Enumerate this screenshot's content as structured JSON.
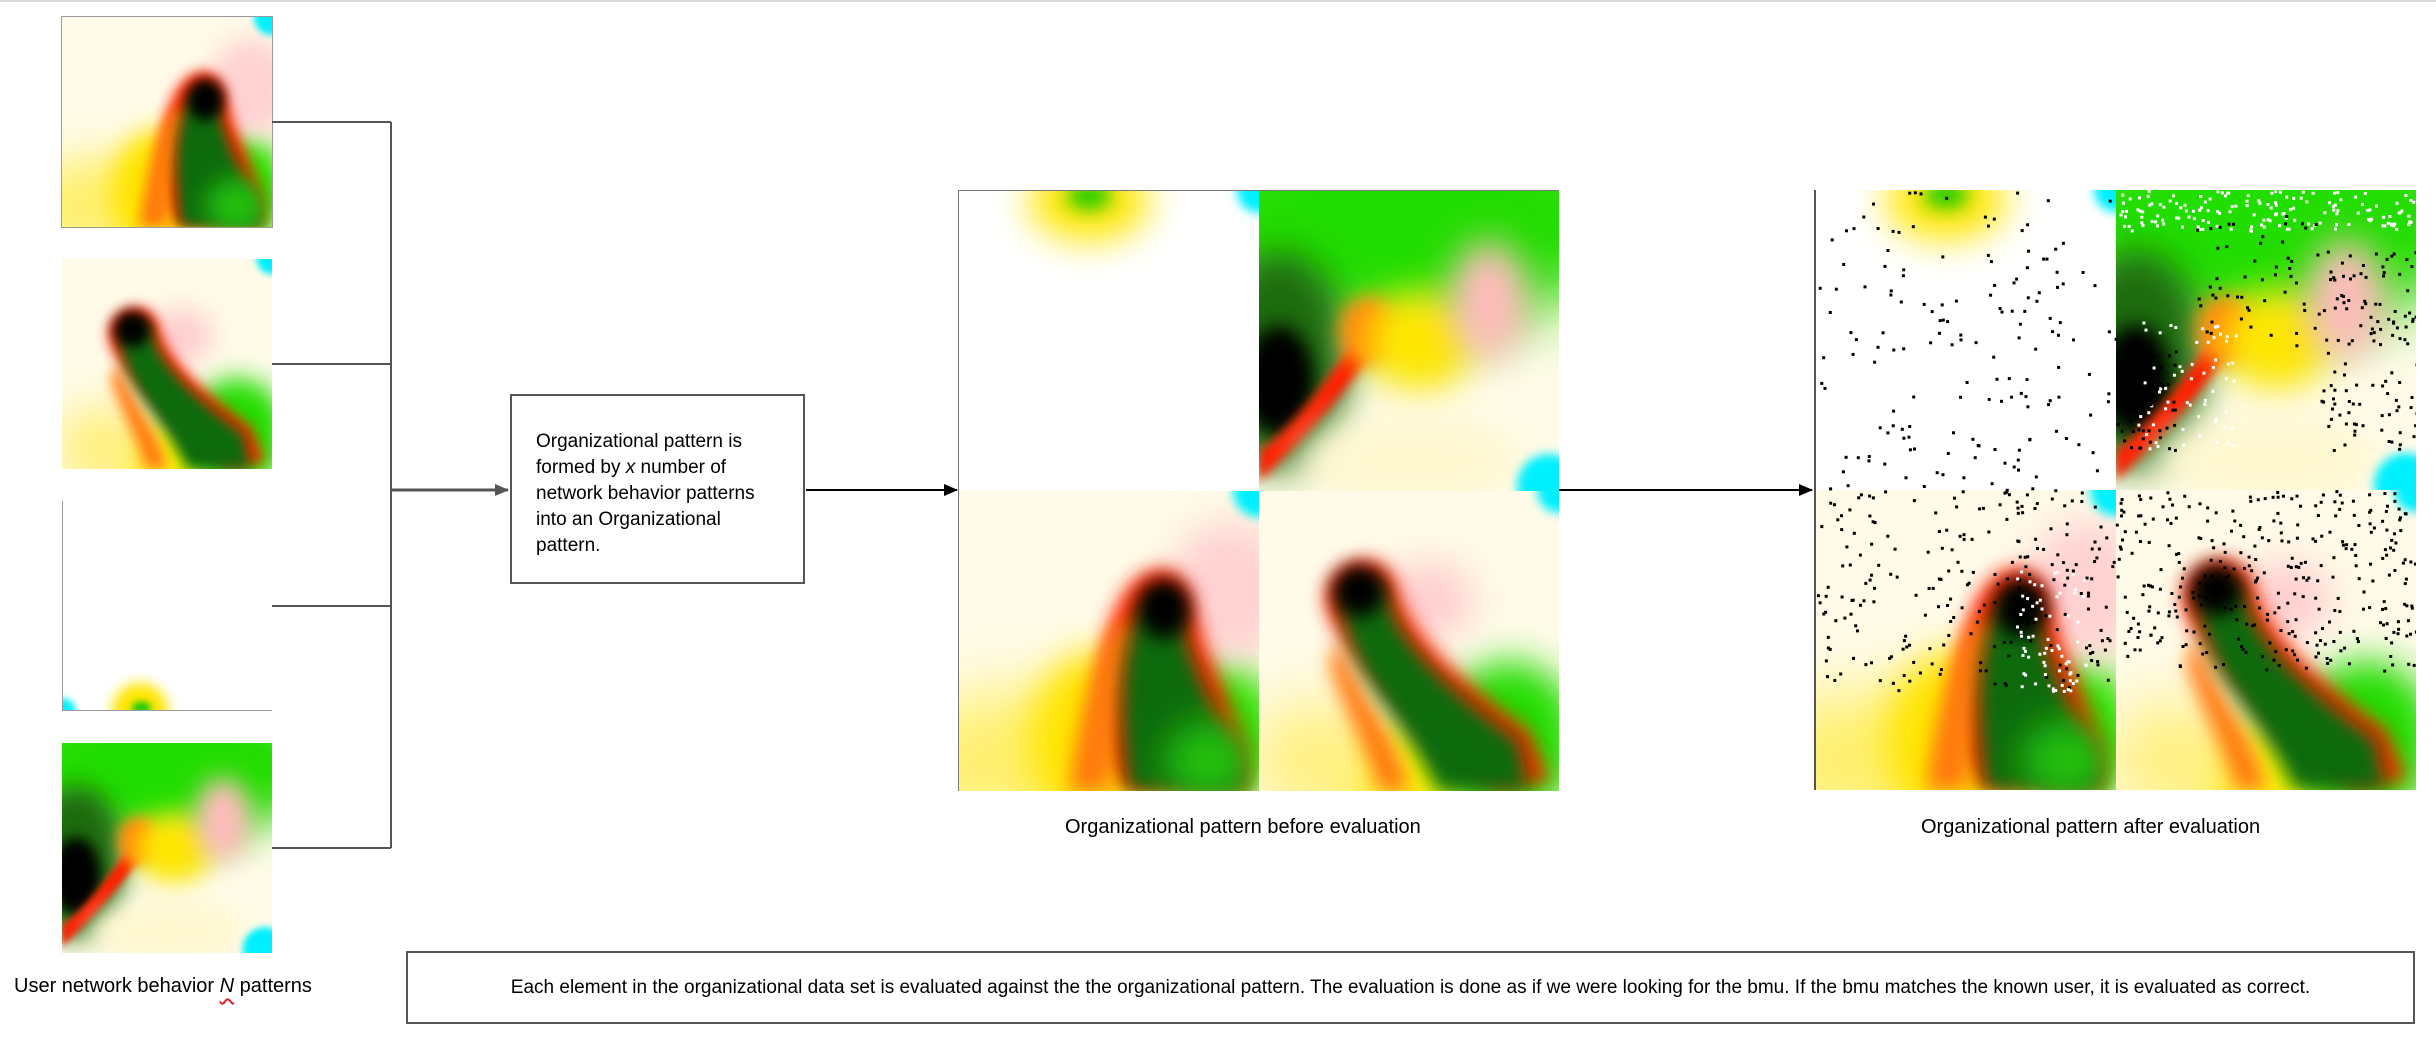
{
  "left_caption": {
    "prefix": "User network behavior ",
    "variable": "N",
    "suffix": " patterns"
  },
  "process_box": {
    "line1": "Organizational pattern is",
    "line2a": "formed by ",
    "variable": "x",
    "line2b": " number of",
    "line3": "network behavior patterns",
    "line4": "into an Organizational",
    "line5": "pattern."
  },
  "before_caption": "Organizational pattern before evaluation",
  "after_caption": "Organizational pattern after evaluation",
  "bottom_note": "Each element in the organizational data set is evaluated against the the organizational pattern. The evaluation is done as if we were looking for the bmu. If the bmu matches the known user, it is evaluated as correct.",
  "colors": {
    "line": "#555555",
    "black": "#000000",
    "red": "#ff1a1a",
    "orange": "#ff7a10",
    "yellow": "#ffee00",
    "green": "#22dd00",
    "cyan": "#00f0ff",
    "cream": "#fffbe6"
  }
}
